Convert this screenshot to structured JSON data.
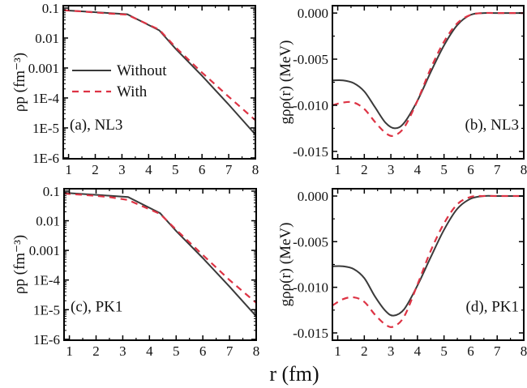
{
  "figure": {
    "xlabel": "r (fm)",
    "colors": {
      "without": "#3a3a3a",
      "with": "#dd3344",
      "frame": "#000000"
    },
    "legend": {
      "entries": [
        "Without",
        "With"
      ],
      "location": "panel (a), left-middle"
    }
  },
  "chart_data": [
    {
      "id": "a",
      "type": "line",
      "panel_label": "(a), NL3",
      "ylabel": "ρp (fm⁻³)",
      "yscale": "log",
      "xlim": [
        0.8,
        8
      ],
      "ylim": [
        1e-06,
        0.1
      ],
      "xticks": [
        "1",
        "2",
        "3",
        "4",
        "5",
        "6",
        "7",
        "8"
      ],
      "yticks": [
        "1E-6",
        "1E-5",
        "1E-4",
        "0.001",
        "0.01",
        "0.1"
      ],
      "series": [
        {
          "name": "Without",
          "style": "solid",
          "x": [
            0.8,
            1.5,
            2.5,
            3.2,
            4.4,
            5.0,
            6.0,
            7.0,
            8.0
          ],
          "y": [
            0.085,
            0.078,
            0.068,
            0.062,
            0.018,
            0.0045,
            0.00055,
            6e-05,
            6e-06
          ]
        },
        {
          "name": "With",
          "style": "dashed",
          "x": [
            0.8,
            1.5,
            2.5,
            3.2,
            4.4,
            5.0,
            6.0,
            7.0,
            8.0
          ],
          "y": [
            0.085,
            0.077,
            0.066,
            0.06,
            0.019,
            0.005,
            0.0007,
            0.00011,
            1.8e-05
          ]
        }
      ]
    },
    {
      "id": "b",
      "type": "line",
      "panel_label": "(b), NL3",
      "ylabel": "gρρ(r) (MeV)",
      "yscale": "linear",
      "xlim": [
        0.8,
        8
      ],
      "ylim": [
        -0.0158,
        0.0008
      ],
      "xticks": [
        "1",
        "2",
        "3",
        "4",
        "5",
        "6",
        "7",
        "8"
      ],
      "yticks": [
        "0.000",
        "-0.005",
        "-0.010",
        "-0.015"
      ],
      "series": [
        {
          "name": "Without",
          "style": "solid",
          "x": [
            0.8,
            1.2,
            1.6,
            2.0,
            2.4,
            2.8,
            3.15,
            3.5,
            4.0,
            4.5,
            5.0,
            5.5,
            6.0,
            6.5,
            7.0,
            8.0
          ],
          "y": [
            -0.0073,
            -0.0073,
            -0.0076,
            -0.0085,
            -0.0102,
            -0.0119,
            -0.0125,
            -0.0119,
            -0.0095,
            -0.0064,
            -0.0035,
            -0.0013,
            -0.0002,
            0.0,
            0.0,
            0.0
          ]
        },
        {
          "name": "With",
          "style": "dashed",
          "x": [
            0.8,
            1.2,
            1.6,
            2.0,
            2.4,
            2.8,
            3.1,
            3.5,
            4.0,
            4.5,
            5.0,
            5.5,
            6.0,
            6.5,
            7.0,
            8.0
          ],
          "y": [
            -0.01,
            -0.0097,
            -0.0097,
            -0.0104,
            -0.0118,
            -0.013,
            -0.0133,
            -0.0124,
            -0.0095,
            -0.006,
            -0.0031,
            -0.0011,
            -0.0002,
            0.0,
            0.0,
            0.0
          ]
        }
      ]
    },
    {
      "id": "c",
      "type": "line",
      "panel_label": "(c), PK1",
      "ylabel": "ρp (fm⁻³)",
      "yscale": "log",
      "xlim": [
        0.8,
        8
      ],
      "ylim": [
        1e-06,
        0.1
      ],
      "xticks": [
        "1",
        "2",
        "3",
        "4",
        "5",
        "6",
        "7",
        "8"
      ],
      "yticks": [
        "1E-6",
        "1E-5",
        "1E-4",
        "0.001",
        "0.01",
        "0.1"
      ],
      "series": [
        {
          "name": "Without",
          "style": "solid",
          "x": [
            0.8,
            1.5,
            2.5,
            3.2,
            4.4,
            5.0,
            6.0,
            7.0,
            8.0
          ],
          "y": [
            0.088,
            0.08,
            0.07,
            0.063,
            0.018,
            0.0045,
            0.00055,
            6e-05,
            6e-06
          ]
        },
        {
          "name": "With",
          "style": "dashed",
          "x": [
            0.8,
            1.5,
            2.5,
            3.2,
            4.4,
            5.0,
            6.0,
            7.0,
            8.0
          ],
          "y": [
            0.082,
            0.075,
            0.063,
            0.05,
            0.017,
            0.005,
            0.0007,
            0.0001,
            1.7e-05
          ]
        }
      ]
    },
    {
      "id": "d",
      "type": "line",
      "panel_label": "(d), PK1",
      "ylabel": "gρρ(r) (MeV)",
      "yscale": "linear",
      "xlim": [
        0.8,
        8
      ],
      "ylim": [
        -0.0158,
        0.0008
      ],
      "xticks": [
        "1",
        "2",
        "3",
        "4",
        "5",
        "6",
        "7",
        "8"
      ],
      "yticks": [
        "0.000",
        "-0.005",
        "-0.010",
        "-0.015"
      ],
      "series": [
        {
          "name": "Without",
          "style": "solid",
          "x": [
            0.8,
            1.2,
            1.6,
            2.0,
            2.4,
            2.8,
            3.1,
            3.5,
            4.0,
            4.5,
            5.0,
            5.5,
            6.0,
            6.5,
            7.0,
            8.0
          ],
          "y": [
            -0.0077,
            -0.0077,
            -0.008,
            -0.009,
            -0.011,
            -0.0126,
            -0.0131,
            -0.0124,
            -0.0098,
            -0.0067,
            -0.0037,
            -0.0014,
            -0.0003,
            0.0,
            0.0,
            0.0
          ]
        },
        {
          "name": "With",
          "style": "dashed",
          "x": [
            0.8,
            1.2,
            1.6,
            2.0,
            2.4,
            2.8,
            3.1,
            3.5,
            4.0,
            4.5,
            5.0,
            5.5,
            6.0,
            6.5,
            7.0,
            8.0
          ],
          "y": [
            -0.012,
            -0.0113,
            -0.0111,
            -0.0116,
            -0.013,
            -0.0141,
            -0.0143,
            -0.0132,
            -0.0097,
            -0.006,
            -0.003,
            -0.0009,
            -0.0001,
            0.0,
            0.0,
            0.0
          ]
        }
      ]
    }
  ]
}
